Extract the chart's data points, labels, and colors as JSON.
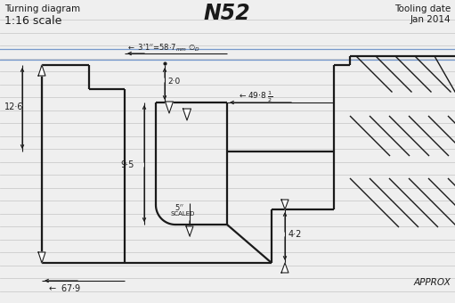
{
  "title": "N52",
  "subtitle_left_line1": "Turning diagram",
  "subtitle_left_line2": "1:16 scale",
  "subtitle_right_line1": "Tooling date",
  "subtitle_right_line2": "Jan 2014",
  "approx_label": "APPROX",
  "bg_color": "#efefef",
  "line_color": "#1a1a1a",
  "blue_line_color": "#7799cc",
  "ruled_line_color": "#c8c8c8",
  "lw_main": 1.6,
  "lw_dim": 0.8,
  "figw": 5.11,
  "figh": 3.4,
  "dpi": 100
}
